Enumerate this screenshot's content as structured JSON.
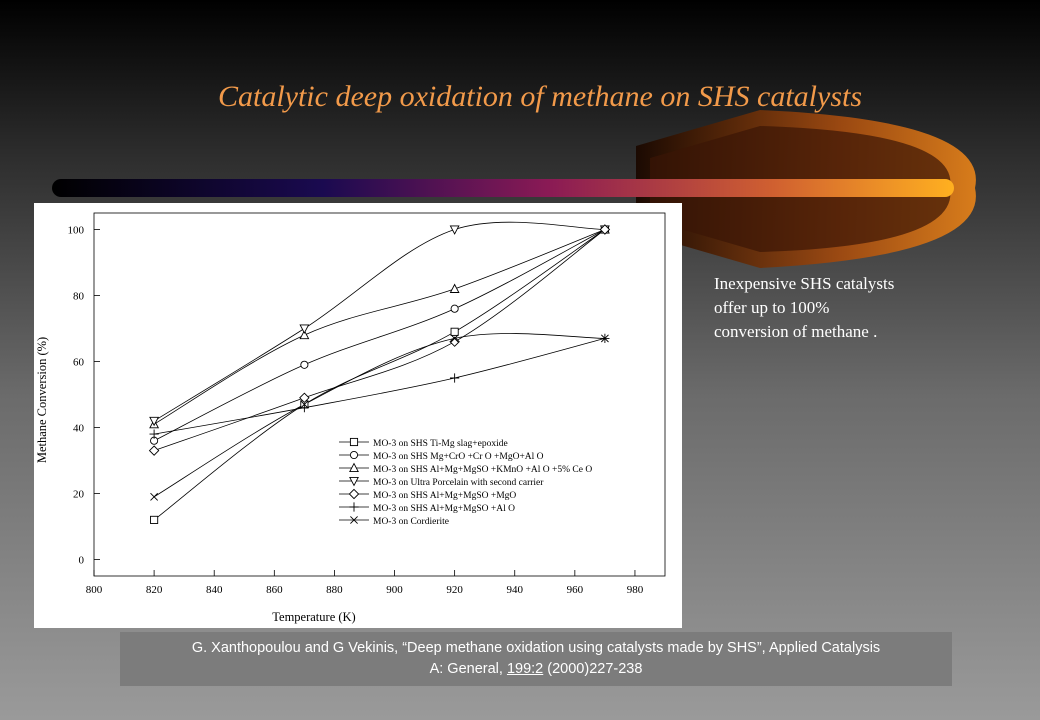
{
  "slide_title": "Catalytic deep oxidation of methane on SHS catalysts",
  "note": "Inexpensive SHS catalysts offer up to 100% conversion of methane .",
  "citation": {
    "line1": "G. Xanthopoulou and G Vekinis, “Deep methane oxidation using catalysts made by SHS”, Applied Catalysis",
    "line2_prefix": "A: General, ",
    "line2_volume": "199:2",
    "line2_suffix": " (2000)227-238"
  },
  "colors": {
    "title": "#f29a4a",
    "bar_start": "#000000",
    "bar_mid": "#8a1a55",
    "bar_end": "#ffb020",
    "flame": "#c85a10"
  },
  "chart_data": {
    "type": "line",
    "title": "",
    "xlabel": "Temperature (K)",
    "ylabel": "Methane Conversion (%)",
    "xlim": [
      800,
      990
    ],
    "ylim": [
      -5,
      105
    ],
    "xticks": [
      800,
      820,
      840,
      860,
      880,
      900,
      920,
      940,
      960,
      980
    ],
    "yticks": [
      0,
      20,
      40,
      60,
      80,
      100
    ],
    "grid": false,
    "legend_position": "bottom-right",
    "x": [
      820,
      870,
      920,
      970
    ],
    "series": [
      {
        "name": "MO-3 on SHS Ti-Mg slag+epoxide",
        "marker": "square",
        "values": [
          12,
          47,
          69,
          100
        ]
      },
      {
        "name": "MO-3 on SHS Mg+CrO +Cr O +MgO+Al O",
        "marker": "circle",
        "values": [
          36,
          59,
          76,
          100
        ]
      },
      {
        "name": "MO-3 on SHS Al+Mg+MgSO +KMnO +Al O +5% Ce O",
        "marker": "triangle-up",
        "values": [
          41,
          68,
          82,
          100
        ]
      },
      {
        "name": "MO-3 on Ultra Porcelain with second carrier",
        "marker": "triangle-down",
        "values": [
          42,
          70,
          100,
          100
        ]
      },
      {
        "name": "MO-3 on SHS Al+Mg+MgSO +MgO",
        "marker": "diamond",
        "values": [
          33,
          49,
          66,
          100
        ]
      },
      {
        "name": "MO-3 on SHS Al+Mg+MgSO +Al O",
        "marker": "plus",
        "values": [
          38,
          46,
          55,
          67
        ]
      },
      {
        "name": "MO-3 on Cordierite",
        "marker": "cross",
        "values": [
          19,
          47,
          67,
          67
        ]
      }
    ]
  }
}
